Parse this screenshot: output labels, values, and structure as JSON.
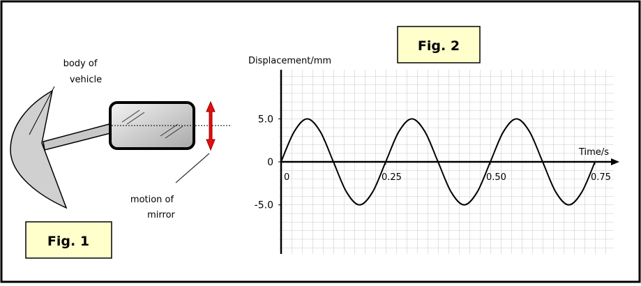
{
  "fig1": {
    "label": "Fig. 1",
    "body_label": [
      "body of",
      "vehicle"
    ],
    "motion_label": [
      "motion of",
      "mirror"
    ]
  },
  "chart_data": {
    "type": "line",
    "title": "Fig. 2",
    "y_label": "Displacement/mm",
    "x_label": "Time/s",
    "x": [
      0,
      0.03125,
      0.0625,
      0.09375,
      0.125,
      0.15625,
      0.1875,
      0.21875,
      0.25,
      0.28125,
      0.3125,
      0.34375,
      0.375,
      0.40625,
      0.4375,
      0.46875,
      0.5,
      0.53125,
      0.5625,
      0.59375,
      0.625,
      0.65625,
      0.6875,
      0.71875,
      0.75
    ],
    "values": [
      0,
      3.5,
      5,
      3.5,
      0,
      -3.5,
      -5,
      -3.5,
      0,
      3.5,
      5,
      3.5,
      0,
      -3.5,
      -5,
      -3.5,
      0,
      3.5,
      5,
      3.5,
      0,
      -3.5,
      -5,
      -3.5,
      0
    ],
    "color": "#000000",
    "xlim": [
      -0.005,
      0.795
    ],
    "ylim": [
      -10.7,
      10.7
    ],
    "xticks": [
      0,
      0.25,
      {
        "value": 0.5,
        "label": "0.50"
      },
      0.75
    ],
    "yticks": [
      {
        "value": 5,
        "label": "5.0"
      },
      0,
      {
        "value": -5,
        "label": "-5.0"
      }
    ]
  }
}
